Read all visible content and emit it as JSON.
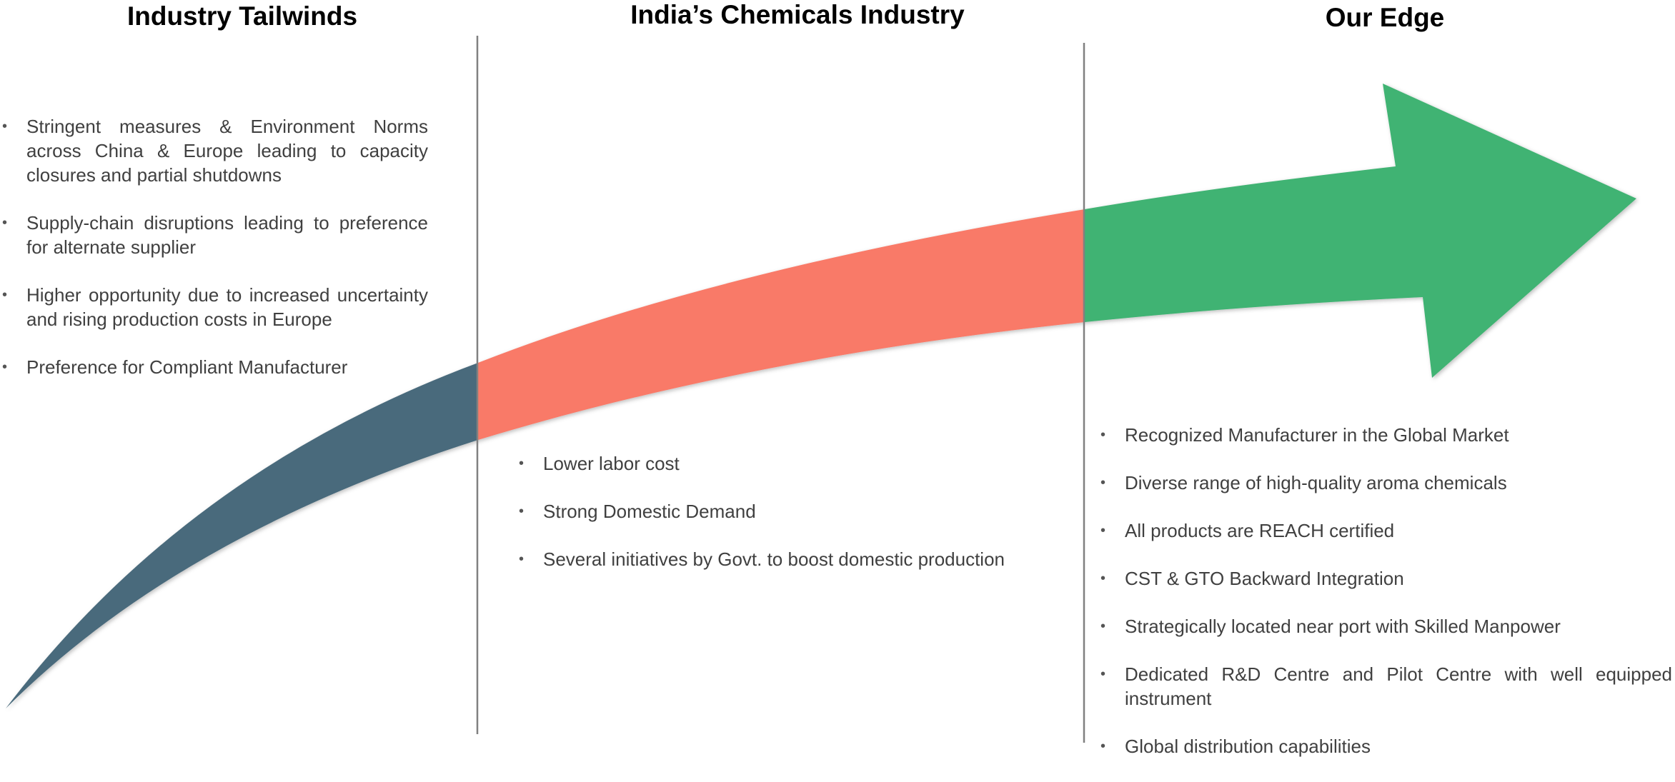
{
  "columns": [
    {
      "title": "Industry Tailwinds",
      "items": [
        "Stringent measures & Environment Norms across China & Europe leading to capacity closures and partial shutdowns",
        "Supply-chain disruptions leading to preference for alternate supplier",
        "Higher opportunity due to increased uncertainty and rising production costs in Europe",
        "Preference for Compliant Manufacturer"
      ]
    },
    {
      "title": "India’s Chemicals Industry",
      "items": [
        "Lower labor cost",
        "Strong Domestic Demand",
        "Several initiatives by Govt. to boost domestic production"
      ]
    },
    {
      "title": "Our Edge",
      "items": [
        "Recognized Manufacturer in the Global Market",
        "Diverse range of high-quality aroma chemicals",
        "All products are REACH certified",
        "CST & GTO Backward Integration",
        "Strategically located near port with Skilled Manpower",
        "Dedicated R&D Centre and Pilot Centre with well equipped instrument",
        "Global distribution capabilities"
      ]
    }
  ]
}
